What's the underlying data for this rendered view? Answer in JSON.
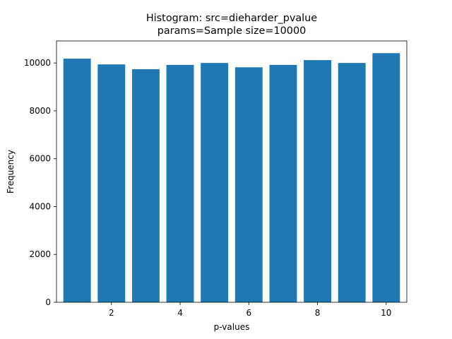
{
  "chart_data": {
    "type": "bar",
    "title": "Histogram: src=dieharder_pvalue\nparams=Sample size=10000",
    "title_lines": [
      "Histogram: src=dieharder_pvalue",
      "params=Sample size=10000"
    ],
    "xlabel": "p-values",
    "ylabel": "Frequency",
    "x": [
      1,
      2,
      3,
      4,
      5,
      6,
      7,
      8,
      9,
      10
    ],
    "values": [
      10180,
      9940,
      9740,
      9920,
      10000,
      9820,
      9920,
      10120,
      10000,
      10410
    ],
    "bar_width": 0.8,
    "xlim": [
      0.4,
      10.6
    ],
    "ylim": [
      0,
      10920
    ],
    "xticks": [
      2,
      4,
      6,
      8,
      10
    ],
    "yticks": [
      0,
      2000,
      4000,
      6000,
      8000,
      10000
    ],
    "grid": false,
    "legend": "none",
    "bar_color": "#1f77b4"
  }
}
